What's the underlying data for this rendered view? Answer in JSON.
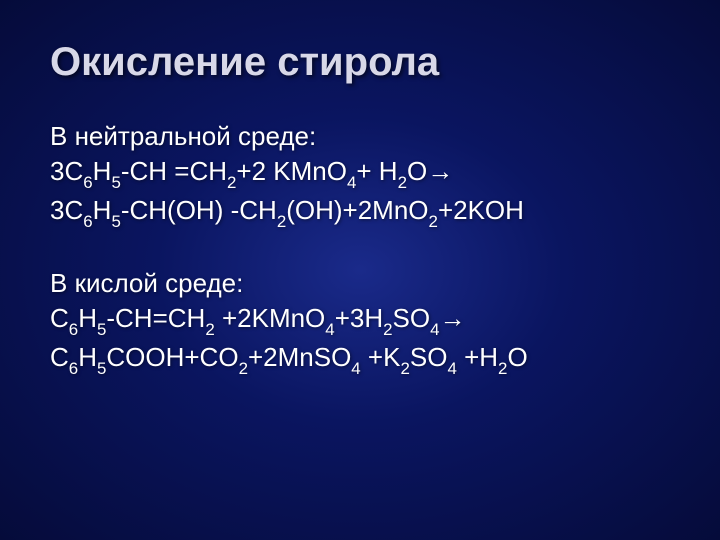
{
  "slide": {
    "title": "Окисление стирола",
    "title_color": "#d8d8e8",
    "body_color": "#ffffff",
    "background_gradient": [
      "#1a2a8a",
      "#0a1560",
      "#050b3a"
    ],
    "title_fontsize": 40,
    "body_fontsize": 26,
    "sections": [
      {
        "heading": "В нейтральной среде:",
        "equations": [
          {
            "tokens": [
              {
                "t": "3C"
              },
              {
                "t": "6",
                "sub": true
              },
              {
                "t": "H"
              },
              {
                "t": "5",
                "sub": true
              },
              {
                "t": "-CH =CH"
              },
              {
                "t": "2",
                "sub": true
              },
              {
                "t": "+2 KMnO"
              },
              {
                "t": "4",
                "sub": true
              },
              {
                "t": "+ H"
              },
              {
                "t": "2",
                "sub": true
              },
              {
                "t": "O→"
              }
            ]
          },
          {
            "tokens": [
              {
                "t": "3C"
              },
              {
                "t": "6",
                "sub": true
              },
              {
                "t": "H"
              },
              {
                "t": "5",
                "sub": true
              },
              {
                "t": "-CH(OH) -CH"
              },
              {
                "t": "2",
                "sub": true
              },
              {
                "t": "(OH)+2MnO"
              },
              {
                "t": "2",
                "sub": true
              },
              {
                "t": "+2KOH"
              }
            ]
          }
        ]
      },
      {
        "heading": "В кислой среде:",
        "equations": [
          {
            "tokens": [
              {
                "t": "C"
              },
              {
                "t": "6",
                "sub": true
              },
              {
                "t": "H"
              },
              {
                "t": "5",
                "sub": true
              },
              {
                "t": "-CH=CH"
              },
              {
                "t": "2",
                "sub": true
              },
              {
                "t": " +2KMnO"
              },
              {
                "t": "4",
                "sub": true
              },
              {
                "t": "+3H"
              },
              {
                "t": "2",
                "sub": true
              },
              {
                "t": "SO"
              },
              {
                "t": "4",
                "sub": true
              },
              {
                "t": "→"
              }
            ]
          },
          {
            "tokens": [
              {
                "t": "C"
              },
              {
                "t": "6",
                "sub": true
              },
              {
                "t": "H"
              },
              {
                "t": "5",
                "sub": true
              },
              {
                "t": "COOH+CO"
              },
              {
                "t": "2",
                "sub": true
              },
              {
                "t": "+2MnSO"
              },
              {
                "t": "4",
                "sub": true
              },
              {
                "t": " +K"
              },
              {
                "t": "2",
                "sub": true
              },
              {
                "t": "SO"
              },
              {
                "t": "4",
                "sub": true
              },
              {
                "t": " +H"
              },
              {
                "t": "2",
                "sub": true
              },
              {
                "t": "O"
              }
            ]
          }
        ]
      }
    ]
  }
}
